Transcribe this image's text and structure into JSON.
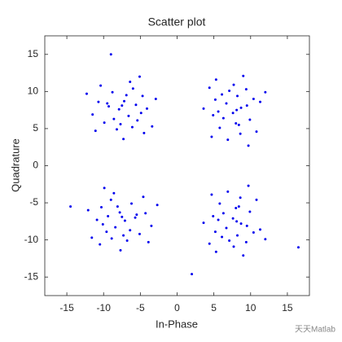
{
  "chart_data": {
    "type": "scatter",
    "title": "Scatter plot",
    "xlabel": "In-Phase",
    "ylabel": "Quadrature",
    "series": [
      {
        "color": "#0000ee",
        "x": [
          -7.2,
          -9.3,
          -5.4,
          -8.2,
          -6.0,
          -10.7,
          -4.1,
          -6.6,
          -9.9,
          -6.4,
          -7.9,
          -4.7,
          -8.8,
          -3.4,
          -11.5,
          -7.3,
          -5.6,
          -10.4,
          -4.5,
          -8.6,
          -6.9,
          -11.1,
          -5.1,
          -7.7,
          -6.1,
          -9.5,
          -2.9,
          -12.3,
          -7.5,
          -4.9,
          8.7,
          8.0,
          6.1,
          4.9,
          10.4,
          8.6,
          7.7,
          6.7,
          5.8,
          11.3,
          7.6,
          9.4,
          9.9,
          5.3,
          6.9,
          3.6,
          8.2,
          10.8,
          4.4,
          6.3,
          9.5,
          4.7,
          12.0,
          5.6,
          5.2,
          8.4,
          9.0,
          9.7,
          8.1,
          7.1,
          -7.8,
          -5.7,
          -9.6,
          -6.8,
          -9.0,
          -4.3,
          -10.9,
          -8.4,
          -5.1,
          -8.6,
          -7.1,
          -10.3,
          -6.2,
          -11.6,
          -3.5,
          -7.7,
          -9.4,
          -4.6,
          -10.5,
          -6.4,
          -8.1,
          -3.9,
          -9.9,
          -7.3,
          -8.9,
          -5.5,
          -12.1,
          -2.7,
          -7.5,
          -10.1,
          8.7,
          8.0,
          6.1,
          4.9,
          10.4,
          8.6,
          7.7,
          6.7,
          5.8,
          11.3,
          7.6,
          9.4,
          9.9,
          5.3,
          6.9,
          3.6,
          8.2,
          10.8,
          4.4,
          6.3,
          9.5,
          4.7,
          12.0,
          5.6,
          5.2,
          8.4,
          9.0,
          9.7,
          8.1,
          7.1,
          16.5,
          -14.5,
          2.0,
          -9.0
        ],
        "y": [
          8.7,
          8.0,
          6.1,
          4.9,
          10.4,
          8.6,
          7.7,
          6.7,
          5.8,
          11.3,
          7.6,
          9.4,
          9.9,
          5.3,
          6.9,
          3.6,
          8.2,
          10.8,
          4.4,
          6.3,
          9.5,
          4.7,
          12.0,
          5.6,
          5.2,
          8.4,
          9.0,
          9.7,
          8.1,
          7.1,
          7.8,
          5.7,
          9.6,
          6.8,
          9.0,
          4.3,
          10.9,
          8.4,
          5.1,
          8.6,
          7.1,
          10.3,
          6.2,
          11.6,
          3.5,
          7.7,
          9.4,
          4.6,
          10.5,
          6.4,
          8.1,
          3.9,
          9.9,
          7.3,
          8.9,
          5.5,
          12.1,
          2.7,
          7.5,
          10.1,
          -6.3,
          -7.0,
          -8.9,
          -10.1,
          -4.6,
          -6.4,
          -7.3,
          -8.3,
          -9.2,
          -3.7,
          -7.4,
          -5.6,
          -5.1,
          -9.7,
          -8.1,
          -11.4,
          -6.8,
          -4.2,
          -10.6,
          -8.7,
          -5.5,
          -10.3,
          -3.0,
          -9.4,
          -9.8,
          -6.6,
          -6.0,
          -5.3,
          -6.9,
          -7.9,
          -7.8,
          -5.7,
          -9.6,
          -6.8,
          -9.0,
          -4.3,
          -10.9,
          -8.4,
          -5.1,
          -8.6,
          -7.1,
          -10.3,
          -6.2,
          -11.6,
          -3.5,
          -7.7,
          -9.4,
          -4.6,
          -10.5,
          -6.4,
          -8.1,
          -3.9,
          -9.9,
          -7.3,
          -8.9,
          -5.5,
          -12.1,
          -2.7,
          -7.5,
          -10.1,
          -11.0,
          -5.5,
          -14.6,
          15.0
        ]
      }
    ],
    "xlim": [
      -18,
      18
    ],
    "ylim": [
      -17.5,
      17.5
    ],
    "xticks": [
      -15,
      -10,
      -5,
      0,
      5,
      10,
      15
    ],
    "yticks": [
      -15,
      -10,
      -5,
      0,
      5,
      10,
      15
    ],
    "watermark": "天天Matlab"
  }
}
